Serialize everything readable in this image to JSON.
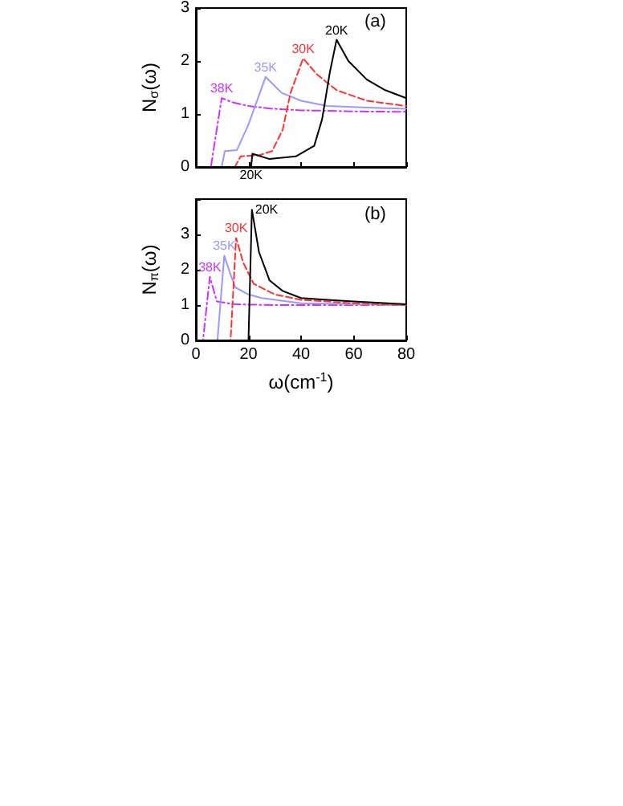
{
  "chart_data": [
    {
      "type": "line",
      "ylabel": "N$_{σ}$(ω)",
      "xlim": [
        0,
        80
      ],
      "xticks": [
        0,
        20,
        40,
        60,
        80
      ],
      "ylim": [
        0,
        3
      ],
      "yticks": [
        0,
        1,
        2,
        3
      ],
      "tick_labels": "y",
      "grid": false,
      "legend": false,
      "marker": "none",
      "series": [
        {
          "name": "38K",
          "color": "#cc33ff",
          "line_style": "dotted",
          "x": [
            0,
            5.7,
            9.8,
            14,
            20,
            29,
            40,
            60,
            80
          ],
          "values": [
            0,
            0,
            1.3,
            1.22,
            1.15,
            1.1,
            1.07,
            1.05,
            1.04
          ]
        },
        {
          "name": "35K",
          "color": "#9999ff",
          "line_style": "solid",
          "x": [
            0,
            9.8,
            11,
            15.6,
            20,
            26.5,
            32.6,
            40,
            50,
            65,
            80
          ],
          "values": [
            0,
            0,
            0.3,
            0.32,
            0.8,
            1.7,
            1.4,
            1.25,
            1.15,
            1.12,
            1.1
          ]
        },
        {
          "name": "30K",
          "color": "#ff3333",
          "line_style": "dashed",
          "x": [
            0,
            14.8,
            17,
            24,
            29,
            33,
            36,
            40.8,
            46,
            53.5,
            65,
            80
          ],
          "values": [
            0,
            0,
            0.2,
            0.22,
            0.3,
            0.7,
            1.4,
            2.05,
            1.75,
            1.45,
            1.25,
            1.15
          ]
        },
        {
          "name": "20K",
          "color": "#000000",
          "line_style": "solid",
          "x": [
            0,
            21,
            21.5,
            28,
            38,
            45,
            48,
            51,
            53.5,
            58,
            65,
            72,
            80
          ],
          "values": [
            0,
            0,
            0.25,
            0.15,
            0.2,
            0.4,
            0.9,
            1.8,
            2.4,
            2.0,
            1.65,
            1.45,
            1.3
          ]
        }
      ],
      "annotations": [
        "(a)",
        {
          "text": "20K",
          "x": 21
        }
      ]
    },
    {
      "type": "line",
      "xlabel": "ω(cm$^{-1}$)",
      "ylabel": "N$_{π}$(ω)",
      "xlim": [
        0,
        80
      ],
      "xticks": [
        0,
        20,
        40,
        60,
        80
      ],
      "ylim": [
        0,
        4
      ],
      "yticks": [
        0,
        1,
        2,
        3,
        {
          "value": 4,
          "label": null
        }
      ],
      "grid": false,
      "legend": false,
      "marker": "none",
      "series": [
        {
          "name": "38K",
          "color": "#cc33ff",
          "line_style": "dotted",
          "x": [
            0,
            2.7,
            5.3,
            8,
            15,
            30,
            80
          ],
          "values": [
            0,
            0,
            1.8,
            1.1,
            1.02,
            1.0,
            1.0
          ]
        },
        {
          "name": "35K",
          "color": "#9999ff",
          "line_style": "solid",
          "x": [
            0,
            8.2,
            10.8,
            13,
            15,
            20,
            25,
            40,
            80
          ],
          "values": [
            0,
            0,
            2.4,
            1.9,
            1.5,
            1.3,
            1.2,
            1.05,
            1.0
          ]
        },
        {
          "name": "30K",
          "color": "#ff3333",
          "line_style": "dashed",
          "x": [
            0,
            13.2,
            15.3,
            18,
            22,
            30,
            40,
            60,
            80
          ],
          "values": [
            0,
            0,
            2.9,
            2.2,
            1.6,
            1.3,
            1.15,
            1.05,
            1.0
          ]
        },
        {
          "name": "20K",
          "color": "#000000",
          "line_style": "solid",
          "x": [
            0,
            20,
            21.3,
            24,
            28,
            33,
            40,
            50,
            60,
            80
          ],
          "values": [
            0,
            0,
            3.7,
            2.5,
            1.7,
            1.4,
            1.2,
            1.15,
            1.1,
            1.02
          ]
        }
      ],
      "annotations": [
        "(b)"
      ]
    }
  ]
}
